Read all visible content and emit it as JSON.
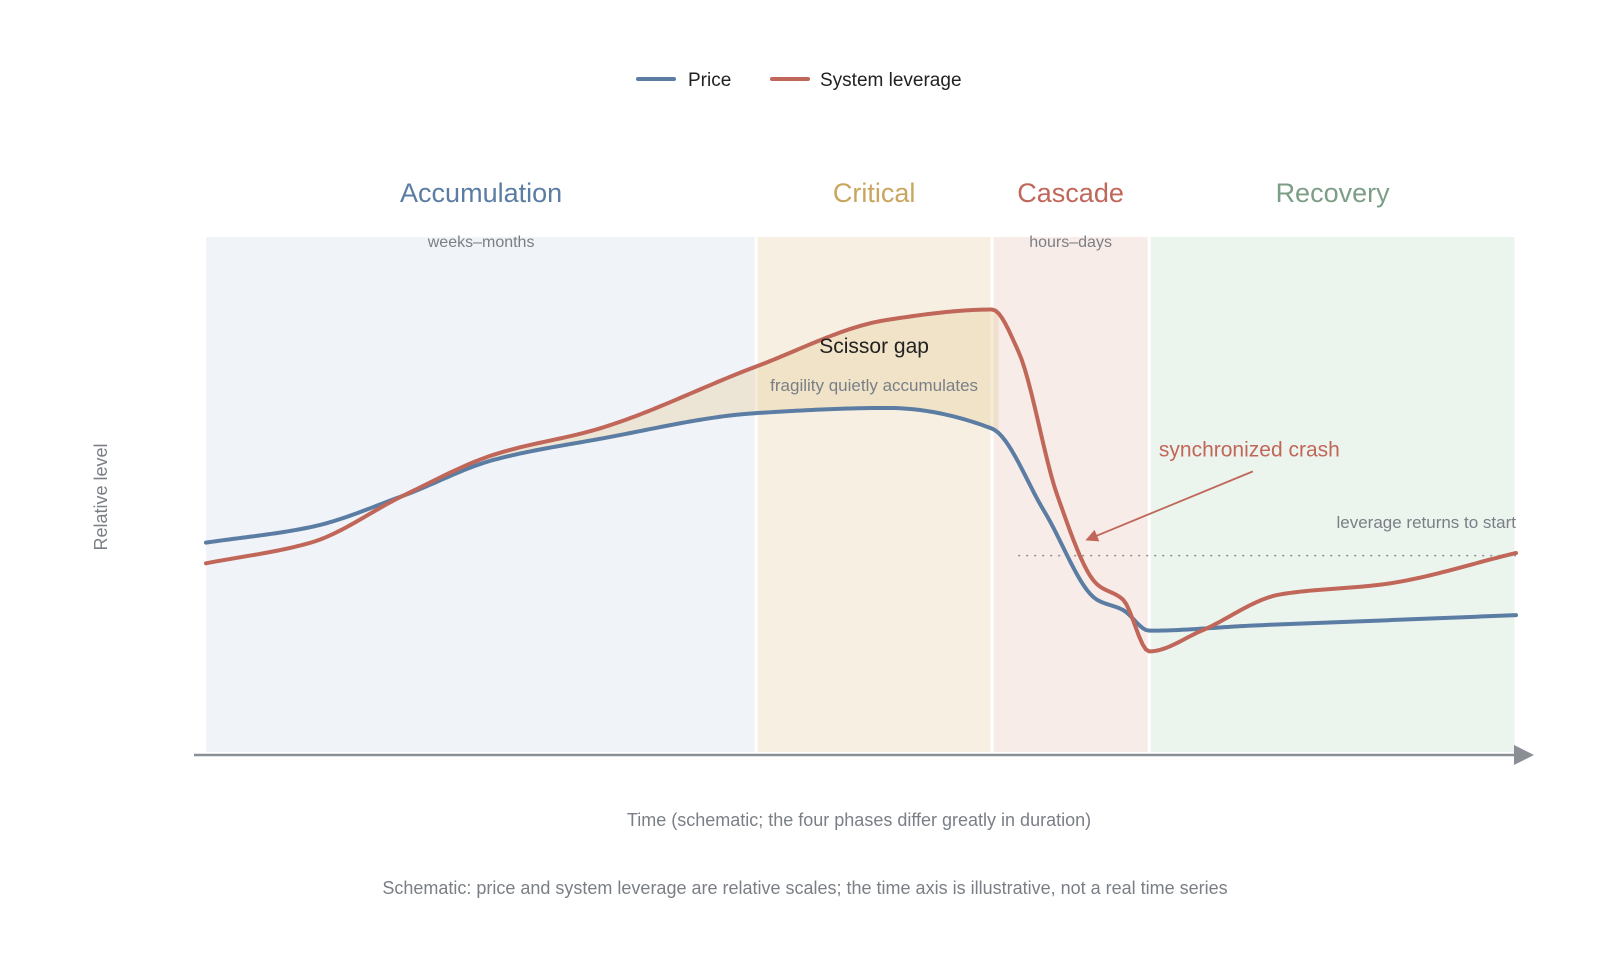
{
  "chart_data": {
    "type": "line",
    "title": "",
    "xlabel": "Time (schematic; the four phases differ greatly in duration)",
    "ylabel": "Relative level",
    "footnote": "Schematic: price and system leverage are relative scales; the time axis is illustrative, not a real time series",
    "legend": {
      "placement": "top-center",
      "entries": [
        {
          "name": "Price",
          "color": "#5b7da3"
        },
        {
          "name": "System leverage",
          "color": "#c0675a"
        }
      ]
    },
    "xlim": [
      0,
      100
    ],
    "ylim": [
      0,
      100
    ],
    "grid": false,
    "phases": [
      {
        "name": "Accumulation",
        "duration": "weeks–months",
        "start": 0,
        "end": 42,
        "color": "#5b7da3",
        "fill": "#f0f3f8"
      },
      {
        "name": "Critical",
        "duration": "",
        "start": 42,
        "end": 60,
        "color": "#c9a55e",
        "fill": "#f7f0e2"
      },
      {
        "name": "Cascade",
        "duration": "hours–days",
        "start": 60,
        "end": 72,
        "color": "#c0675a",
        "fill": "#f8ece8"
      },
      {
        "name": "Recovery",
        "duration": "",
        "start": 72,
        "end": 100,
        "color": "#7d9e86",
        "fill": "#ecf4ee"
      }
    ],
    "series": [
      {
        "name": "Price",
        "color": "#5b7da3",
        "points": [
          [
            0,
            41
          ],
          [
            8,
            44
          ],
          [
            15,
            50
          ],
          [
            22,
            57
          ],
          [
            30,
            61
          ],
          [
            42,
            66
          ],
          [
            52,
            67
          ],
          [
            60,
            63
          ],
          [
            64,
            47
          ],
          [
            68,
            30
          ],
          [
            70,
            28
          ],
          [
            72,
            24
          ],
          [
            80,
            25
          ],
          [
            90,
            26
          ],
          [
            100,
            27
          ]
        ]
      },
      {
        "name": "System leverage",
        "color": "#c0675a",
        "points": [
          [
            0,
            37
          ],
          [
            8,
            41
          ],
          [
            15,
            50
          ],
          [
            22,
            58
          ],
          [
            30,
            63
          ],
          [
            42,
            75
          ],
          [
            52,
            84
          ],
          [
            60,
            86
          ],
          [
            62,
            78
          ],
          [
            65,
            50
          ],
          [
            68,
            33
          ],
          [
            70,
            30
          ],
          [
            72,
            20
          ],
          [
            76,
            24
          ],
          [
            82,
            31
          ],
          [
            90,
            33
          ],
          [
            100,
            39
          ]
        ]
      }
    ],
    "annotations": [
      {
        "id": "gap",
        "label": "Scissor gap",
        "sublabel": "fragility quietly accumulates",
        "x": 51,
        "y": 79
      },
      {
        "id": "crash",
        "label": "synchronized crash",
        "x": 79,
        "y": 59,
        "arrow_to": [
          67,
          42
        ]
      },
      {
        "id": "return",
        "label": "leverage returns to start",
        "x": 100,
        "y": 45,
        "line_y": 38.5,
        "line_from": 62,
        "line_to": 100
      }
    ]
  }
}
